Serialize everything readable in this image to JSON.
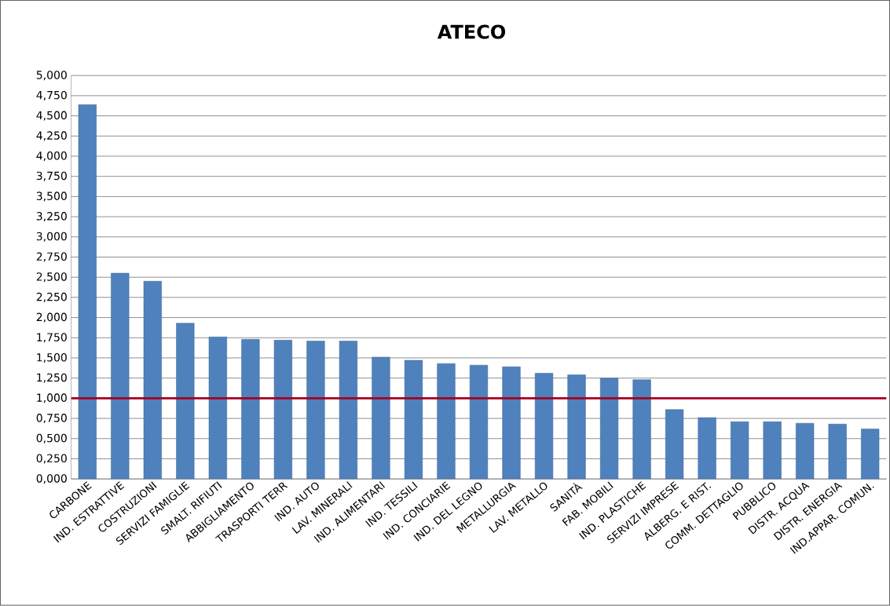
{
  "chart_data": {
    "type": "bar",
    "title": "ATECO",
    "categories": [
      "CARBONE",
      "IND. ESTRATTIVE",
      "COSTRUZIONI",
      "SERVIZI FAMIGLIE",
      "SMALT. RIFIUTI",
      "ABBIGLIAMENTO",
      "TRASPORTI TERR",
      "IND. AUTO",
      "LAV. MINERALI",
      "IND. ALIMENTARI",
      "IND. TESSILI",
      "IND. CONCIARIE",
      "IND. DEL LEGNO",
      "METALLURGIA",
      "LAV. METALLO",
      "SANITÀ",
      "FAB. MOBILI",
      "IND. PLASTICHE",
      "SERVIZI IMPRESE",
      "ALBERG. E RIST.",
      "COMM. DETTAGLIO",
      "PUBBLICO",
      "DISTR. ACQUA",
      "DISTR. ENERGIA",
      "IND.APPAR. COMUN."
    ],
    "values": [
      4.64,
      2.55,
      2.45,
      1.93,
      1.76,
      1.73,
      1.72,
      1.71,
      1.71,
      1.51,
      1.47,
      1.43,
      1.41,
      1.39,
      1.31,
      1.29,
      1.25,
      1.23,
      0.86,
      0.76,
      0.71,
      0.71,
      0.69,
      0.68,
      0.62
    ],
    "color": "#4f81bd",
    "ylim": [
      0,
      5
    ],
    "yticks": [
      {
        "value": 0,
        "label": "0,000"
      },
      {
        "value": 0.25,
        "label": "0,250"
      },
      {
        "value": 0.5,
        "label": "0,500"
      },
      {
        "value": 0.75,
        "label": "0,750"
      },
      {
        "value": 1,
        "label": "1,000"
      },
      {
        "value": 1.25,
        "label": "1,250"
      },
      {
        "value": 1.5,
        "label": "1,500"
      },
      {
        "value": 1.75,
        "label": "1,750"
      },
      {
        "value": 2,
        "label": "2,000"
      },
      {
        "value": 2.25,
        "label": "2,250"
      },
      {
        "value": 2.5,
        "label": "2,500"
      },
      {
        "value": 2.75,
        "label": "2,750"
      },
      {
        "value": 3,
        "label": "3,000"
      },
      {
        "value": 3.25,
        "label": "3,250"
      },
      {
        "value": 3.5,
        "label": "3,500"
      },
      {
        "value": 3.75,
        "label": "3,750"
      },
      {
        "value": 4,
        "label": "4,000"
      },
      {
        "value": 4.25,
        "label": "4,250"
      },
      {
        "value": 4.5,
        "label": "4,500"
      },
      {
        "value": 4.75,
        "label": "4,750"
      },
      {
        "value": 5,
        "label": "5,000"
      }
    ],
    "grid": "y",
    "ref_lines": [
      {
        "axis": "y",
        "value": 1,
        "color": "#a50021"
      }
    ]
  }
}
